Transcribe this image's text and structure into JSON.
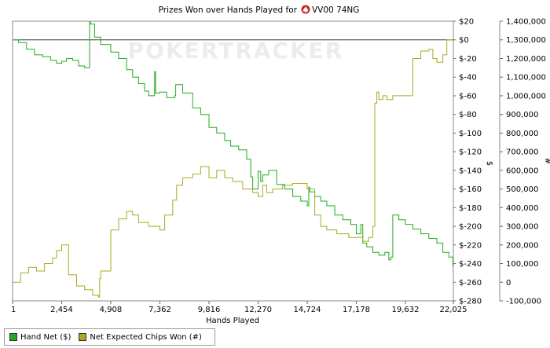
{
  "chart_data": {
    "type": "line",
    "title_prefix": "Prizes Won over Hands Played for",
    "player_name": "VV00 74NG",
    "watermark": "POKERTRACKER",
    "xlabel": "Hands Played",
    "y_left_label": "$",
    "y_right_label": "#",
    "x_ticks": [
      "1",
      "2,454",
      "4,908",
      "7,362",
      "9,816",
      "12,270",
      "14,724",
      "17,178",
      "19,632",
      "22,025"
    ],
    "x_tick_values": [
      1,
      2454,
      4908,
      7362,
      9816,
      12270,
      14724,
      17178,
      19632,
      22025
    ],
    "xlim": [
      1,
      22025
    ],
    "y_left_ticks": [
      "$20",
      "$0",
      "$-20",
      "$-40",
      "$-60",
      "$-80",
      "$-100",
      "$-120",
      "$-140",
      "$-160",
      "$-180",
      "$-200",
      "$-220",
      "$-240",
      "$-260",
      "$-280"
    ],
    "y_left_tick_values": [
      20,
      0,
      -20,
      -40,
      -60,
      -80,
      -100,
      -120,
      -140,
      -160,
      -180,
      -200,
      -220,
      -240,
      -260,
      -280
    ],
    "y_left_lim": [
      -280,
      20
    ],
    "y_right_ticks": [
      "1,400,000",
      "1,300,000",
      "1,200,000",
      "1,100,000",
      "1,000,000",
      "900,000",
      "800,000",
      "700,000",
      "600,000",
      "500,000",
      "400,000",
      "300,000",
      "200,000",
      "100,000",
      "0",
      "-100,000"
    ],
    "y_right_tick_values": [
      1400000,
      1300000,
      1200000,
      1100000,
      1000000,
      900000,
      800000,
      700000,
      600000,
      500000,
      400000,
      300000,
      200000,
      100000,
      0,
      -100000
    ],
    "y_right_lim": [
      -100000,
      1400000
    ],
    "zero_line": 0,
    "series": [
      {
        "name": "Hand Net ($)",
        "axis": "left",
        "color": "#22aa22",
        "x": [
          1,
          300,
          700,
          1100,
          1500,
          1900,
          2200,
          2454,
          2700,
          3000,
          3300,
          3600,
          3800,
          3850,
          3900,
          4100,
          4400,
          4908,
          5300,
          5700,
          6000,
          6300,
          6600,
          6800,
          7000,
          7100,
          7150,
          7362,
          7700,
          8100,
          8150,
          8500,
          9000,
          9400,
          9816,
          10200,
          10600,
          10900,
          11300,
          11700,
          11900,
          12000,
          12270,
          12400,
          12500,
          12800,
          13200,
          13600,
          14000,
          14400,
          14724,
          14800,
          14850,
          15100,
          15400,
          15700,
          16100,
          16500,
          16900,
          17178,
          17400,
          17500,
          17700,
          18000,
          18300,
          18600,
          18800,
          18900,
          19000,
          19300,
          19632,
          20000,
          20400,
          20800,
          21200,
          21500,
          21800,
          22000,
          22025
        ],
        "y": [
          0,
          -3,
          -10,
          -16,
          -18,
          -22,
          -25,
          -23,
          -20,
          -22,
          -28,
          -30,
          -30,
          20,
          17,
          3,
          -5,
          -13,
          -20,
          -32,
          -40,
          -47,
          -55,
          -60,
          -60,
          -34,
          -57,
          -56,
          -62,
          -60,
          -48,
          -57,
          -73,
          -80,
          -94,
          -100,
          -108,
          -114,
          -118,
          -128,
          -147,
          -160,
          -141,
          -152,
          -145,
          -140,
          -155,
          -160,
          -168,
          -173,
          -178,
          -158,
          -163,
          -168,
          -173,
          -178,
          -188,
          -193,
          -198,
          -208,
          -198,
          -218,
          -222,
          -228,
          -231,
          -228,
          -236,
          -233,
          -188,
          -193,
          -198,
          -203,
          -208,
          -213,
          -218,
          -228,
          -233,
          -243,
          -253
        ]
      },
      {
        "name": "Net Expected Chips Won (#)",
        "axis": "right",
        "color": "#aaaa22",
        "x": [
          1,
          400,
          800,
          1200,
          1600,
          2000,
          2200,
          2454,
          2800,
          3200,
          3600,
          4000,
          4300,
          4350,
          4400,
          4908,
          5300,
          5700,
          6000,
          6300,
          6800,
          7362,
          7600,
          8000,
          8200,
          8500,
          9000,
          9400,
          9816,
          10200,
          10600,
          11000,
          11500,
          12000,
          12270,
          12500,
          12700,
          13000,
          13500,
          14000,
          14724,
          15100,
          15400,
          15700,
          16200,
          16800,
          17178,
          17500,
          17800,
          18000,
          18100,
          18200,
          18300,
          18500,
          18700,
          19000,
          19632,
          20000,
          20400,
          20800,
          21000,
          21200,
          21500,
          21700,
          22025
        ],
        "y": [
          0,
          50000,
          80000,
          60000,
          100000,
          130000,
          170000,
          200000,
          40000,
          -20000,
          -40000,
          -70000,
          -80000,
          20000,
          60000,
          280000,
          340000,
          380000,
          360000,
          320000,
          300000,
          280000,
          360000,
          440000,
          520000,
          560000,
          580000,
          620000,
          560000,
          600000,
          560000,
          540000,
          500000,
          480000,
          460000,
          520000,
          480000,
          500000,
          520000,
          530000,
          500000,
          360000,
          300000,
          280000,
          260000,
          240000,
          240000,
          220000,
          240000,
          300000,
          960000,
          1020000,
          980000,
          1000000,
          980000,
          1000000,
          1000000,
          1200000,
          1240000,
          1250000,
          1200000,
          1180000,
          1220000,
          1300000,
          1300000
        ]
      }
    ],
    "legend": [
      "Hand Net ($)",
      "Net Expected Chips Won (#)"
    ],
    "legend_position": "bottom-left",
    "grid": false
  }
}
